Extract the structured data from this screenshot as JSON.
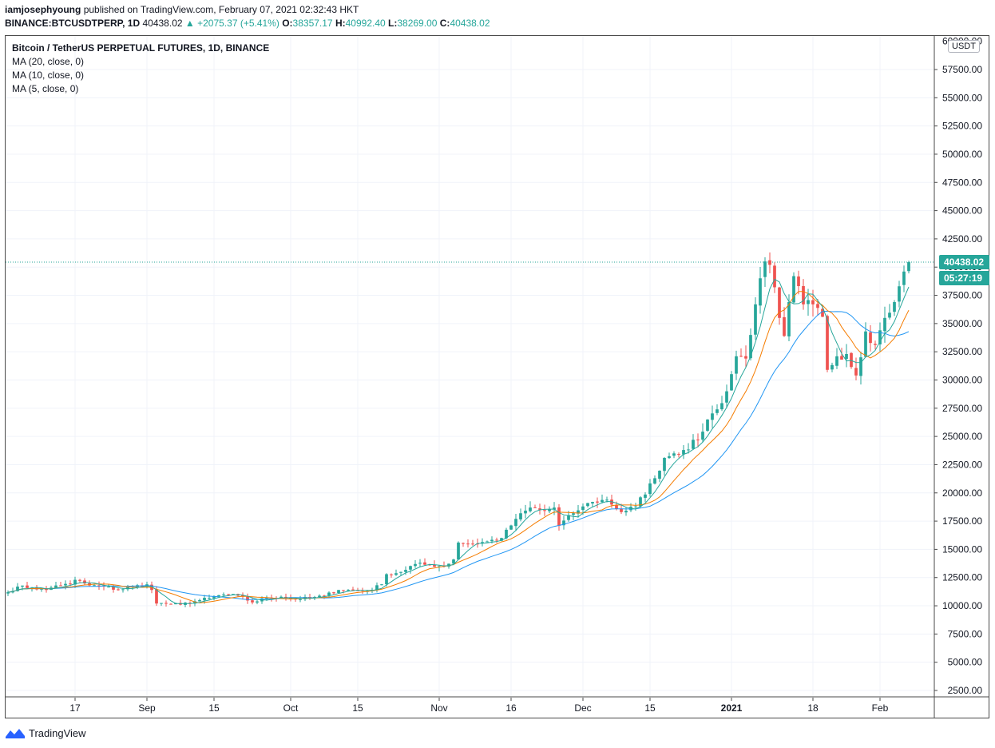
{
  "header": {
    "publisher": "iamjosephyoung",
    "published_text": "published on TradingView.com, February 07, 2021 02:32:43 HKT",
    "symbol": "BINANCE:BTCUSDTPERP, 1D",
    "last": "40438.02",
    "change": "▲ +2075.37 (+5.41%)",
    "o_label": "O:",
    "o_value": "38357.17",
    "h_label": "H:",
    "h_value": "40992.40",
    "l_label": "L:",
    "l_value": "38269.00",
    "c_label": "C:",
    "c_value": "40438.02"
  },
  "legend": {
    "title": "Bitcoin / TetherUS PERPETUAL FUTURES, 1D, BINANCE",
    "ma20": "MA (20, close, 0)",
    "ma10": "MA (10, close, 0)",
    "ma5": "MA (5, close, 0)"
  },
  "price_axis": {
    "currency": "USDT",
    "top_label_partial": "60000.00",
    "last_price_label": "40438.02",
    "countdown_label": "05:27:19"
  },
  "footer": {
    "brand": "TradingView"
  },
  "colors": {
    "up": "#26a69a",
    "down": "#ef5350",
    "ma5": "#26a69a",
    "ma10": "#f57c00",
    "ma20": "#2196f3"
  },
  "chart_data": {
    "type": "candlestick",
    "title": "Bitcoin / TetherUS PERPETUAL FUTURES, 1D, BINANCE",
    "interval": "1D",
    "x_range": [
      "2020-08-03",
      "2021-02-07"
    ],
    "ylim": [
      2500,
      60000
    ],
    "y_ticks": [
      2500,
      5000,
      7500,
      10000,
      12500,
      15000,
      17500,
      20000,
      22500,
      25000,
      27500,
      30000,
      32500,
      35000,
      37500,
      40000,
      42500,
      45000,
      47500,
      50000,
      52500,
      55000,
      57500
    ],
    "x_ticks": [
      {
        "label": "17",
        "date": "2020-08-17"
      },
      {
        "label": "Sep",
        "date": "2020-09-01"
      },
      {
        "label": "15",
        "date": "2020-09-15"
      },
      {
        "label": "Oct",
        "date": "2020-10-01"
      },
      {
        "label": "15",
        "date": "2020-10-15"
      },
      {
        "label": "Nov",
        "date": "2020-11-01"
      },
      {
        "label": "16",
        "date": "2020-11-16"
      },
      {
        "label": "Dec",
        "date": "2020-12-01"
      },
      {
        "label": "15",
        "date": "2020-12-15"
      },
      {
        "label": "2021",
        "date": "2021-01-01",
        "bold": true
      },
      {
        "label": "18",
        "date": "2021-01-18"
      },
      {
        "label": "Feb",
        "date": "2021-02-01"
      }
    ],
    "last_price": 40438.02,
    "grid": true,
    "series_close": [
      [
        "2020-08-03",
        11200
      ],
      [
        "2020-08-05",
        11700
      ],
      [
        "2020-08-08",
        11600
      ],
      [
        "2020-08-11",
        11400
      ],
      [
        "2020-08-13",
        11800
      ],
      [
        "2020-08-16",
        11900
      ],
      [
        "2020-08-17",
        12300
      ],
      [
        "2020-08-20",
        11800
      ],
      [
        "2020-08-23",
        11700
      ],
      [
        "2020-08-26",
        11400
      ],
      [
        "2020-08-29",
        11700
      ],
      [
        "2020-09-01",
        11900
      ],
      [
        "2020-09-02",
        11400
      ],
      [
        "2020-09-03",
        10200
      ],
      [
        "2020-09-05",
        10200
      ],
      [
        "2020-09-08",
        10100
      ],
      [
        "2020-09-11",
        10400
      ],
      [
        "2020-09-14",
        10700
      ],
      [
        "2020-09-17",
        11000
      ],
      [
        "2020-09-20",
        10900
      ],
      [
        "2020-09-23",
        10300
      ],
      [
        "2020-09-26",
        10700
      ],
      [
        "2020-09-29",
        10800
      ],
      [
        "2020-10-02",
        10600
      ],
      [
        "2020-10-05",
        10700
      ],
      [
        "2020-10-08",
        10900
      ],
      [
        "2020-10-11",
        11400
      ],
      [
        "2020-10-14",
        11400
      ],
      [
        "2020-10-17",
        11300
      ],
      [
        "2020-10-20",
        11900
      ],
      [
        "2020-10-21",
        12800
      ],
      [
        "2020-10-24",
        13000
      ],
      [
        "2020-10-27",
        13700
      ],
      [
        "2020-10-30",
        13600
      ],
      [
        "2020-11-02",
        13500
      ],
      [
        "2020-11-04",
        14100
      ],
      [
        "2020-11-05",
        15600
      ],
      [
        "2020-11-08",
        15500
      ],
      [
        "2020-11-11",
        15700
      ],
      [
        "2020-11-14",
        16000
      ],
      [
        "2020-11-17",
        17700
      ],
      [
        "2020-11-20",
        18700
      ],
      [
        "2020-11-23",
        18400
      ],
      [
        "2020-11-25",
        18700
      ],
      [
        "2020-11-26",
        17100
      ],
      [
        "2020-11-29",
        18200
      ],
      [
        "2020-12-01",
        18800
      ],
      [
        "2020-12-03",
        19200
      ],
      [
        "2020-12-06",
        19400
      ],
      [
        "2020-12-09",
        18300
      ],
      [
        "2020-12-12",
        18800
      ],
      [
        "2020-12-16",
        21300
      ],
      [
        "2020-12-18",
        23100
      ],
      [
        "2020-12-20",
        23500
      ],
      [
        "2020-12-22",
        23800
      ],
      [
        "2020-12-25",
        24700
      ],
      [
        "2020-12-27",
        26500
      ],
      [
        "2020-12-29",
        27400
      ],
      [
        "2020-12-31",
        29000
      ],
      [
        "2021-01-02",
        32100
      ],
      [
        "2021-01-04",
        31900
      ],
      [
        "2021-01-06",
        36700
      ],
      [
        "2021-01-08",
        40500
      ],
      [
        "2021-01-09",
        40200
      ],
      [
        "2021-01-11",
        35500
      ],
      [
        "2021-01-12",
        33900
      ],
      [
        "2021-01-14",
        39200
      ],
      [
        "2021-01-16",
        36700
      ],
      [
        "2021-01-18",
        36700
      ],
      [
        "2021-01-20",
        35600
      ],
      [
        "2021-01-21",
        30900
      ],
      [
        "2021-01-23",
        32100
      ],
      [
        "2021-01-25",
        32300
      ],
      [
        "2021-01-27",
        30400
      ],
      [
        "2021-01-29",
        34300
      ],
      [
        "2021-01-31",
        33100
      ],
      [
        "2021-02-02",
        35500
      ],
      [
        "2021-02-04",
        36900
      ],
      [
        "2021-02-05",
        38300
      ],
      [
        "2021-02-07",
        40438
      ]
    ]
  }
}
